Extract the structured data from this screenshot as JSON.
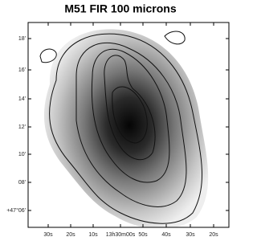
{
  "title": "M51 FIR 100 microns",
  "x_tick_labels": [
    "30s",
    "20s",
    "10s",
    "13h30m00s",
    "50s",
    "40s",
    "30s",
    "20s"
  ],
  "y_tick_labels": [
    "18'",
    "16'",
    "14'",
    "12'",
    "10'",
    "08'",
    "+47°06'"
  ]
}
